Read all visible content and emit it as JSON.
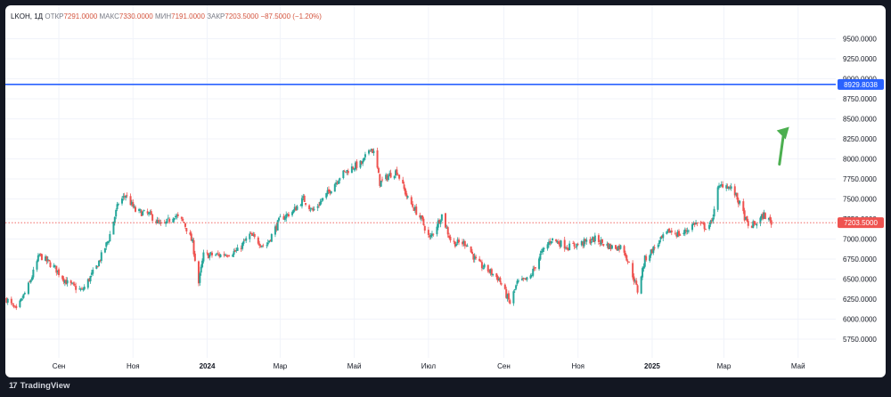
{
  "legend": {
    "symbol": "LKOH, 1Д",
    "open_label": "ОТКР",
    "open_value": "7291.0000",
    "high_label": "МАКС",
    "high_value": "7330.0000",
    "low_label": "МИН",
    "low_value": "7191.0000",
    "close_label": "ЗАКР",
    "close_value": "7203.5000",
    "change": "−87.5000 (−1.20%)"
  },
  "branding": {
    "logo": "17",
    "name": "TradingView"
  },
  "colors": {
    "up": "#26a69a",
    "down": "#ef5350",
    "hline": "#2962ff",
    "arrow": "#4caf50",
    "price_line": "#ef5350",
    "grid": "#f0f3fa",
    "axis_text": "#131722"
  },
  "chart_data": {
    "type": "candlestick",
    "symbol": "LKOH",
    "interval": "1Д",
    "ylim": [
      5650,
      9650
    ],
    "y_ticks": [
      5750,
      6000,
      6250,
      6500,
      6750,
      7000,
      7250,
      7500,
      7750,
      8000,
      8250,
      8500,
      8750,
      9000,
      9250,
      9500
    ],
    "y_tick_labels": [
      "5750.0000",
      "6000.0000",
      "6250.0000",
      "6500.0000",
      "6750.0000",
      "7000.0000",
      "7250.0000",
      "7500.0000",
      "7750.0000",
      "8000.0000",
      "8250.0000",
      "8500.0000",
      "8750.0000",
      "9000.0000",
      "9250.0000",
      "9500.0000"
    ],
    "x_labels": [
      "Сен",
      "Ноя",
      "2024",
      "Мар",
      "Май",
      "Июл",
      "Сен",
      "Ноя",
      "2025",
      "Мар",
      "Май"
    ],
    "x_label_dates": [
      "2023-09",
      "2023-11",
      "2024-01",
      "2024-03",
      "2024-05",
      "2024-07",
      "2024-09",
      "2024-11",
      "2025-01",
      "2025-03",
      "2025-05"
    ],
    "horizontal_line": {
      "value": 8929.8038,
      "label": "8929.8038"
    },
    "last_price": {
      "value": 7203.5,
      "label": "7203.5000"
    },
    "trend_arrow": {
      "from": {
        "date": "2025-04",
        "price": 7800
      },
      "to": {
        "date": "2025-05",
        "price": 8400
      }
    },
    "price_path": [
      [
        "2023-07-20",
        6250
      ],
      [
        "2023-07-28",
        6100
      ],
      [
        "2023-08-08",
        6450
      ],
      [
        "2023-08-16",
        6800
      ],
      [
        "2023-08-28",
        6650
      ],
      [
        "2023-09-08",
        6450
      ],
      [
        "2023-09-20",
        6350
      ],
      [
        "2023-10-02",
        6650
      ],
      [
        "2023-10-12",
        7000
      ],
      [
        "2023-10-20",
        7450
      ],
      [
        "2023-10-26",
        7550
      ],
      [
        "2023-11-03",
        7350
      ],
      [
        "2023-11-15",
        7300
      ],
      [
        "2023-11-25",
        7150
      ],
      [
        "2023-12-05",
        7300
      ],
      [
        "2023-12-13",
        7200
      ],
      [
        "2023-12-20",
        6950
      ],
      [
        "2023-12-25",
        6450
      ],
      [
        "2023-12-29",
        6800
      ],
      [
        "2024-01-12",
        6800
      ],
      [
        "2024-01-26",
        6850
      ],
      [
        "2024-02-05",
        7050
      ],
      [
        "2024-02-18",
        6900
      ],
      [
        "2024-03-01",
        7250
      ],
      [
        "2024-03-12",
        7350
      ],
      [
        "2024-03-20",
        7500
      ],
      [
        "2024-03-28",
        7350
      ],
      [
        "2024-04-08",
        7550
      ],
      [
        "2024-04-20",
        7800
      ],
      [
        "2024-04-30",
        7900
      ],
      [
        "2024-05-08",
        7950
      ],
      [
        "2024-05-14",
        8150
      ],
      [
        "2024-05-18",
        8050
      ],
      [
        "2024-05-22",
        7700
      ],
      [
        "2024-05-30",
        7800
      ],
      [
        "2024-06-05",
        7850
      ],
      [
        "2024-06-14",
        7500
      ],
      [
        "2024-06-25",
        7250
      ],
      [
        "2024-07-02",
        7000
      ],
      [
        "2024-07-12",
        7300
      ],
      [
        "2024-07-20",
        6950
      ],
      [
        "2024-08-01",
        6950
      ],
      [
        "2024-08-10",
        6700
      ],
      [
        "2024-08-20",
        6600
      ],
      [
        "2024-08-28",
        6500
      ],
      [
        "2024-09-06",
        6200
      ],
      [
        "2024-09-12",
        6450
      ],
      [
        "2024-09-22",
        6500
      ],
      [
        "2024-10-01",
        6800
      ],
      [
        "2024-10-10",
        7000
      ],
      [
        "2024-10-24",
        6900
      ],
      [
        "2024-11-05",
        6950
      ],
      [
        "2024-11-15",
        7000
      ],
      [
        "2024-11-28",
        6900
      ],
      [
        "2024-12-08",
        6900
      ],
      [
        "2024-12-16",
        6550
      ],
      [
        "2024-12-20",
        6350
      ],
      [
        "2024-12-26",
        6750
      ],
      [
        "2025-01-06",
        6950
      ],
      [
        "2025-01-15",
        7100
      ],
      [
        "2025-01-25",
        7050
      ],
      [
        "2025-02-05",
        7200
      ],
      [
        "2025-02-14",
        7150
      ],
      [
        "2025-02-19",
        7200
      ],
      [
        "2025-02-23",
        7600
      ],
      [
        "2025-03-01",
        7700
      ],
      [
        "2025-03-09",
        7600
      ],
      [
        "2025-03-15",
        7400
      ],
      [
        "2025-03-21",
        7150
      ],
      [
        "2025-03-28",
        7200
      ],
      [
        "2025-04-03",
        7300
      ],
      [
        "2025-04-09",
        7203.5
      ]
    ]
  }
}
